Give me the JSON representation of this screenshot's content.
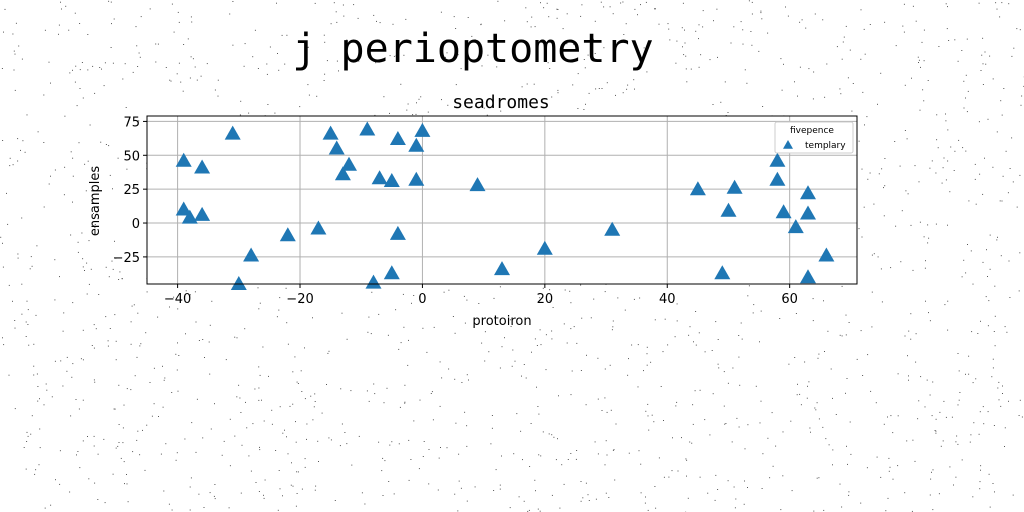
{
  "page": {
    "suptitle": "j perioptometry"
  },
  "chart_data": {
    "type": "scatter",
    "title": "seadromes",
    "xlabel": "protoiron",
    "ylabel": "ensamples",
    "xlim": [
      -45,
      71
    ],
    "ylim": [
      -45,
      79
    ],
    "xticks": [
      -40,
      -20,
      0,
      20,
      40,
      60
    ],
    "yticks": [
      -25,
      0,
      25,
      50,
      75
    ],
    "xtick_labels": [
      "−40",
      "−20",
      "0",
      "20",
      "40",
      "60"
    ],
    "ytick_labels": [
      "−25",
      "0",
      "25",
      "50",
      "75"
    ],
    "grid": true,
    "legend": {
      "title": "fivepence",
      "placement": "top-right"
    },
    "series": [
      {
        "name": "templary",
        "marker": "triangle-up",
        "color": "#1f77b4",
        "points": [
          [
            -39,
            46
          ],
          [
            -39,
            10
          ],
          [
            -38,
            4
          ],
          [
            -36,
            41
          ],
          [
            -36,
            6
          ],
          [
            -31,
            66
          ],
          [
            -30,
            -45
          ],
          [
            -28,
            -24
          ],
          [
            -22,
            -9
          ],
          [
            -17,
            -4
          ],
          [
            -15,
            66
          ],
          [
            -14,
            55
          ],
          [
            -13,
            36
          ],
          [
            -12,
            43
          ],
          [
            -9,
            69
          ],
          [
            -8,
            -44
          ],
          [
            -7,
            33
          ],
          [
            -5,
            31
          ],
          [
            -5,
            -37
          ],
          [
            -4,
            62
          ],
          [
            -4,
            -8
          ],
          [
            -1,
            32
          ],
          [
            -1,
            57
          ],
          [
            0,
            68
          ],
          [
            9,
            28
          ],
          [
            13,
            -34
          ],
          [
            20,
            -19
          ],
          [
            31,
            -5
          ],
          [
            45,
            25
          ],
          [
            49,
            -37
          ],
          [
            50,
            9
          ],
          [
            51,
            26
          ],
          [
            58,
            46
          ],
          [
            58,
            32
          ],
          [
            59,
            8
          ],
          [
            61,
            -3
          ],
          [
            63,
            22
          ],
          [
            63,
            7
          ],
          [
            63,
            -40
          ],
          [
            66,
            -24
          ]
        ]
      }
    ]
  }
}
